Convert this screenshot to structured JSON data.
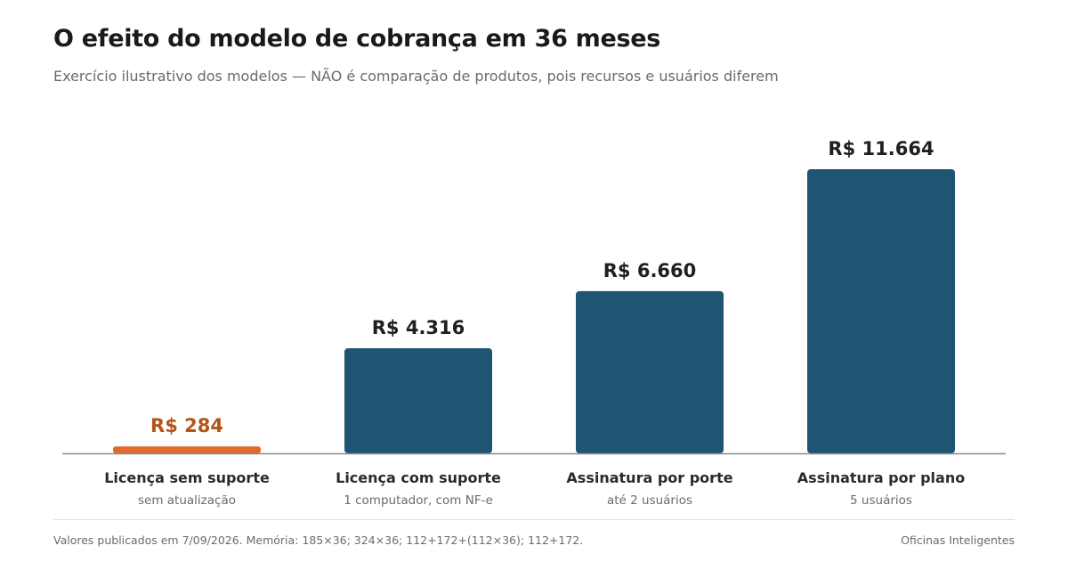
{
  "header": {
    "title": "O efeito do modelo de cobrança em 36 meses",
    "subtitle": "Exercício ilustrativo dos modelos — NÃO é comparação de produtos, pois recursos e usuários diferem"
  },
  "footer": {
    "note": "Valores publicados em 7/09/2026. Memória: 185×36; 324×36; 112+172+(112×36); 112+172.",
    "brand": "Oficinas Inteligentes"
  },
  "colors": {
    "bar": "#1f5572",
    "highlight": "#e2692b",
    "highlight_label": "#b65418",
    "baseline": "#8a8a8a"
  },
  "chart_data": {
    "type": "bar",
    "categories": [
      "Licença sem suporte",
      "Licença com suporte",
      "Assinatura por porte",
      "Assinatura por plano"
    ],
    "sublabels": [
      "sem atualização",
      "1 computador, com NF-e",
      "até 2 usuários",
      "5 usuários"
    ],
    "values": [
      284,
      4316,
      6660,
      11664
    ],
    "value_labels": [
      "R$ 284",
      "R$ 4.316",
      "R$ 6.660",
      "R$ 11.664"
    ],
    "highlight_index": 0,
    "ylim": [
      0,
      11664
    ],
    "grid": false,
    "legend": "none"
  }
}
